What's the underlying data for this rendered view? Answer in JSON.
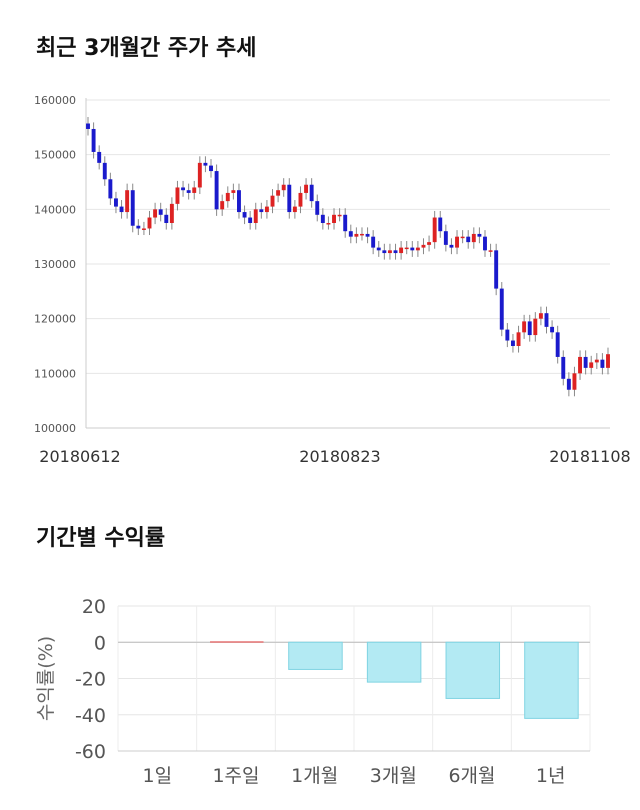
{
  "chart_data": [
    {
      "type": "candlestick",
      "title": "최근 3개월간 주가 추세",
      "y_ticks": [
        100000,
        110000,
        120000,
        130000,
        140000,
        150000,
        160000
      ],
      "ylim": [
        100000,
        160000
      ],
      "x_tick_labels": [
        "20180612",
        "20180823",
        "20181108"
      ],
      "colors": {
        "up": "#dd2222",
        "down": "#1a1acc",
        "grid": "#e6e6e6"
      },
      "closes": [
        154700,
        150500,
        148500,
        145500,
        142000,
        140500,
        139500,
        143500,
        137000,
        136500,
        136500,
        138500,
        140000,
        139000,
        137500,
        141000,
        144000,
        143500,
        143000,
        144000,
        148500,
        148000,
        147000,
        140000,
        141500,
        143000,
        143500,
        139500,
        138500,
        137500,
        140000,
        139500,
        140500,
        142500,
        143500,
        144500,
        139500,
        140500,
        143000,
        144500,
        141500,
        139000,
        137500,
        137500,
        139000,
        139000,
        136000,
        135000,
        135500,
        135500,
        135000,
        133000,
        132500,
        132000,
        132500,
        132000,
        133000,
        133000,
        132500,
        133000,
        133500,
        134000,
        138500,
        136000,
        133500,
        133000,
        135000,
        135000,
        134000,
        135500,
        135000,
        132500,
        132500,
        125500,
        118000,
        116000,
        115000,
        117500,
        119500,
        117000,
        120000,
        121000,
        118500,
        117500,
        113000,
        109000,
        107000,
        110000,
        113000,
        111000,
        112000,
        112500,
        111000,
        113500
      ]
    },
    {
      "type": "bar",
      "title": "기간별 수익률",
      "categories": [
        "1일",
        "1주일",
        "1개월",
        "3개월",
        "6개월",
        "1년"
      ],
      "values": [
        0,
        0,
        -15,
        -22,
        -31,
        -42
      ],
      "ylabel": "수익률(%)",
      "ylim": [
        -60,
        20
      ],
      "y_ticks": [
        20,
        0,
        -20,
        -40,
        -60
      ],
      "colors": {
        "bar_fill": "#b3eaf3",
        "bar_stroke": "#7fd3e2",
        "zero_bar": "#e57373"
      }
    }
  ]
}
